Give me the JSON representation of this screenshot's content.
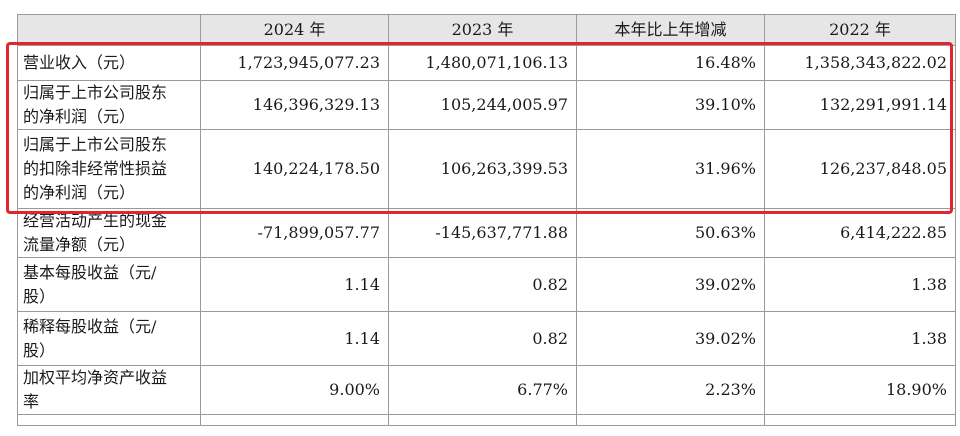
{
  "headers": [
    "",
    "2024 年",
    "2023 年",
    "本年比上年增减",
    "2022 年"
  ],
  "rows": [
    {
      "label_lines": [
        "营业收入（元）"
      ],
      "values": [
        "1,723,945,077.23",
        "1,480,071,106.13",
        "16.48%",
        "1,358,343,822.02"
      ]
    },
    {
      "label_lines": [
        "归属于上市公司股东",
        "的净利润（元）"
      ],
      "values": [
        "146,396,329.13",
        "105,244,005.97",
        "39.10%",
        "132,291,991.14"
      ]
    },
    {
      "label_lines": [
        "归属于上市公司股东",
        "的扣除非经常性损益",
        "的净利润（元）"
      ],
      "values": [
        "140,224,178.50",
        "106,263,399.53",
        "31.96%",
        "126,237,848.05"
      ]
    },
    {
      "label_lines": [
        "经营活动产生的现金",
        "流量净额（元）"
      ],
      "values": [
        "-71,899,057.77",
        "-145,637,771.88",
        "50.63%",
        "6,414,222.85"
      ]
    },
    {
      "label_lines": [
        "基本每股收益（元/",
        "股）"
      ],
      "values": [
        "1.14",
        "0.82",
        "39.02%",
        "1.38"
      ]
    },
    {
      "label_lines": [
        "稀释每股收益（元/",
        "股）"
      ],
      "values": [
        "1.14",
        "0.82",
        "39.02%",
        "1.38"
      ]
    },
    {
      "label_lines": [
        "加权平均净资产收益",
        "率"
      ],
      "values": [
        "9.00%",
        "6.77%",
        "2.23%",
        "18.90%"
      ]
    }
  ],
  "highlight_color": "#e0262b"
}
